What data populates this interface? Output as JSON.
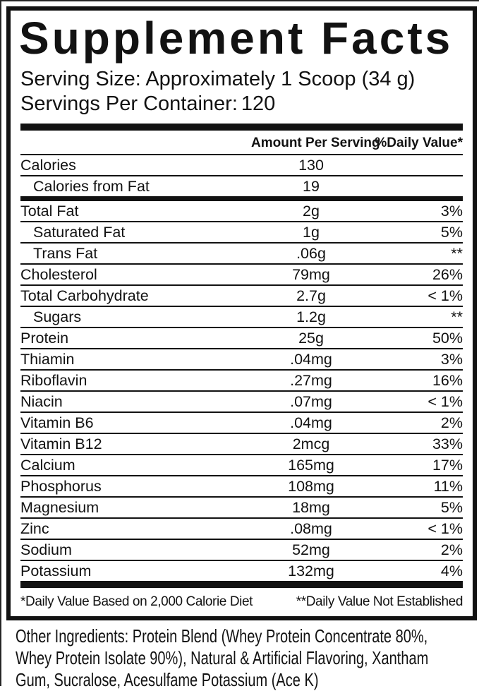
{
  "panel": {
    "title": "Supplement Facts",
    "serving_size": "Serving Size: Approximately 1 Scoop (34 g)",
    "servings_label": "Servings Per Container:",
    "servings_value": "120"
  },
  "table": {
    "amount_header": "Amount Per Serving",
    "dv_header": "%Daily Value*",
    "rows": [
      {
        "name": "Calories",
        "amount": "130",
        "dv": "",
        "indent": false,
        "sep_after": "thin"
      },
      {
        "name": "Calories from Fat",
        "amount": "19",
        "dv": "",
        "indent": true,
        "sep_after": "thick"
      },
      {
        "name": "Total Fat",
        "amount": "2g",
        "dv": "3%",
        "indent": false,
        "sep_after": "thin"
      },
      {
        "name": "Saturated Fat",
        "amount": "1g",
        "dv": "5%",
        "indent": true,
        "sep_after": "thin"
      },
      {
        "name": "Trans Fat",
        "amount": ".06g",
        "dv": "**",
        "indent": true,
        "sep_after": "thin"
      },
      {
        "name": "Cholesterol",
        "amount": "79mg",
        "dv": "26%",
        "indent": false,
        "sep_after": "thin"
      },
      {
        "name": "Total Carbohydrate",
        "amount": "2.7g",
        "dv": "< 1%",
        "indent": false,
        "sep_after": "thin"
      },
      {
        "name": "Sugars",
        "amount": "1.2g",
        "dv": "**",
        "indent": true,
        "sep_after": "thin"
      },
      {
        "name": "Protein",
        "amount": "25g",
        "dv": "50%",
        "indent": false,
        "sep_after": "thin"
      },
      {
        "name": "Thiamin",
        "amount": ".04mg",
        "dv": "3%",
        "indent": false,
        "sep_after": "thin"
      },
      {
        "name": "Riboflavin",
        "amount": ".27mg",
        "dv": "16%",
        "indent": false,
        "sep_after": "thin"
      },
      {
        "name": "Niacin",
        "amount": ".07mg",
        "dv": "< 1%",
        "indent": false,
        "sep_after": "thin"
      },
      {
        "name": "Vitamin B6",
        "amount": ".04mg",
        "dv": "2%",
        "indent": false,
        "sep_after": "thin"
      },
      {
        "name": "Vitamin B12",
        "amount": "2mcg",
        "dv": "33%",
        "indent": false,
        "sep_after": "thin"
      },
      {
        "name": "Calcium",
        "amount": "165mg",
        "dv": "17%",
        "indent": false,
        "sep_after": "thin"
      },
      {
        "name": "Phosphorus",
        "amount": "108mg",
        "dv": "11%",
        "indent": false,
        "sep_after": "thin"
      },
      {
        "name": "Magnesium",
        "amount": "18mg",
        "dv": "5%",
        "indent": false,
        "sep_after": "thin"
      },
      {
        "name": "Zinc",
        "amount": ".08mg",
        "dv": "< 1%",
        "indent": false,
        "sep_after": "thin"
      },
      {
        "name": "Sodium",
        "amount": "52mg",
        "dv": "2%",
        "indent": false,
        "sep_after": "thin"
      },
      {
        "name": "Potassium",
        "amount": "132mg",
        "dv": "4%",
        "indent": false,
        "sep_after": "none"
      }
    ]
  },
  "footnotes": {
    "dv_basis": "*Daily Value Based on 2,000 Calorie Diet",
    "not_established": "**Daily Value Not Established"
  },
  "other_ingredients": "Other Ingredients: Protein Blend (Whey Protein Concentrate 80%,\nWhey Protein Isolate 90%), Natural & Artificial Flavoring, Xantham\nGum, Sucralose, Acesulfame Potassium (Ace K)",
  "colors": {
    "ink": "#121212",
    "background": "#ffffff"
  }
}
